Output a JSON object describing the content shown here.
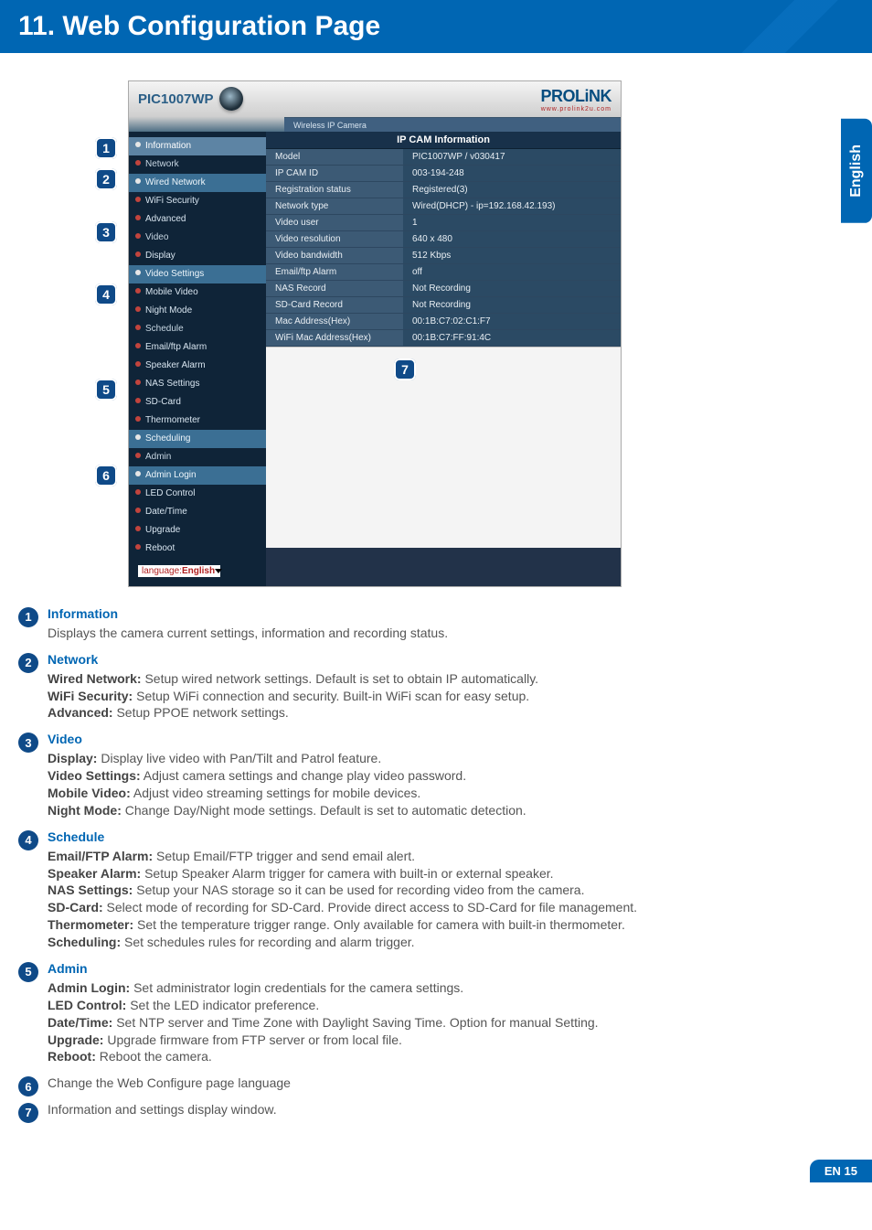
{
  "page": {
    "heading": "11. Web Configuration Page",
    "english_tab": "English",
    "footer_label": "EN 15"
  },
  "bubbles": [
    "1",
    "2",
    "3",
    "4",
    "5",
    "6",
    "7"
  ],
  "screenshot": {
    "model_label": "PIC1007WP",
    "tabbar_text": "Wireless IP Camera",
    "brand_main": "PROLiNK",
    "brand_sub": "www.prolink2u.com",
    "side_items": [
      {
        "label": "Information",
        "cls": "selected"
      },
      {
        "label": "Network",
        "cls": "section"
      },
      {
        "label": "Wired Network",
        "cls": "highlight"
      },
      {
        "label": "WiFi Security",
        "cls": ""
      },
      {
        "label": "Advanced",
        "cls": ""
      },
      {
        "label": "Video",
        "cls": "section"
      },
      {
        "label": "Display",
        "cls": ""
      },
      {
        "label": "Video Settings",
        "cls": "highlight"
      },
      {
        "label": "Mobile Video",
        "cls": ""
      },
      {
        "label": "Night Mode",
        "cls": ""
      },
      {
        "label": "Schedule",
        "cls": "section"
      },
      {
        "label": "Email/ftp Alarm",
        "cls": ""
      },
      {
        "label": "Speaker Alarm",
        "cls": ""
      },
      {
        "label": "NAS Settings",
        "cls": ""
      },
      {
        "label": "SD-Card",
        "cls": ""
      },
      {
        "label": "Thermometer",
        "cls": ""
      },
      {
        "label": "Scheduling",
        "cls": "highlight"
      },
      {
        "label": "Admin",
        "cls": "section"
      },
      {
        "label": "Admin Login",
        "cls": "highlight"
      },
      {
        "label": "LED Control",
        "cls": ""
      },
      {
        "label": "Date/Time",
        "cls": ""
      },
      {
        "label": "Upgrade",
        "cls": ""
      },
      {
        "label": "Reboot",
        "cls": ""
      }
    ],
    "lang_prefix": "language:",
    "lang_value": "English",
    "main_header": "IP CAM Information",
    "rows": [
      {
        "k": "Model",
        "v": "PIC1007WP / v030417"
      },
      {
        "k": "IP CAM ID",
        "v": "003-194-248"
      },
      {
        "k": "Registration status",
        "v": "Registered(3)"
      },
      {
        "k": "Network type",
        "v": "Wired(DHCP) - ip=192.168.42.193)"
      },
      {
        "k": "Video user",
        "v": "1"
      },
      {
        "k": "Video resolution",
        "v": "640 x 480"
      },
      {
        "k": "Video bandwidth",
        "v": "512 Kbps"
      },
      {
        "k": "Email/ftp Alarm",
        "v": "off"
      },
      {
        "k": "NAS Record",
        "v": "Not Recording"
      },
      {
        "k": "SD-Card Record",
        "v": "Not Recording"
      },
      {
        "k": "Mac Address(Hex)",
        "v": "00:1B:C7:02:C1:F7"
      },
      {
        "k": "WiFi Mac Address(Hex)",
        "v": "00:1B:C7:FF:91:4C"
      }
    ]
  },
  "definitions": [
    {
      "num": "1",
      "title": "Information",
      "lines": [
        {
          "bold": "",
          "text": "Displays the camera current settings, information and recording status."
        }
      ]
    },
    {
      "num": "2",
      "title": "Network",
      "lines": [
        {
          "bold": "Wired Network:",
          "text": " Setup wired network settings. Default is set to obtain IP automatically."
        },
        {
          "bold": "WiFi Security:",
          "text": " Setup WiFi connection and security. Built-in WiFi scan for easy setup."
        },
        {
          "bold": "Advanced:",
          "text": " Setup PPOE network settings."
        }
      ]
    },
    {
      "num": "3",
      "title": "Video",
      "lines": [
        {
          "bold": "Display:",
          "text": " Display live video with Pan/Tilt and Patrol feature."
        },
        {
          "bold": "Video Settings:",
          "text": " Adjust camera settings and change play video password."
        },
        {
          "bold": "Mobile Video:",
          "text": " Adjust video streaming settings for mobile devices."
        },
        {
          "bold": "Night Mode:",
          "text": " Change Day/Night mode settings. Default is set to automatic detection."
        }
      ]
    },
    {
      "num": "4",
      "title": "Schedule",
      "lines": [
        {
          "bold": "Email/FTP Alarm:",
          "text": " Setup Email/FTP trigger and send email alert."
        },
        {
          "bold": "Speaker Alarm:",
          "text": " Setup Speaker Alarm trigger for camera with built-in or external speaker."
        },
        {
          "bold": "NAS Settings:",
          "text": " Setup your NAS storage so it can be used for recording video from the camera."
        },
        {
          "bold": "SD-Card:",
          "text": " Select mode of recording for SD-Card. Provide direct access to SD-Card for file management."
        },
        {
          "bold": "Thermometer:",
          "text": " Set the temperature trigger range. Only available for camera with built-in thermometer."
        },
        {
          "bold": "Scheduling:",
          "text": " Set schedules rules for recording and alarm trigger."
        }
      ]
    },
    {
      "num": "5",
      "title": "Admin",
      "lines": [
        {
          "bold": "Admin Login:",
          "text": " Set administrator login credentials for the camera settings."
        },
        {
          "bold": "LED Control:",
          "text": " Set the LED indicator preference."
        },
        {
          "bold": "Date/Time:",
          "text": " Set NTP server and Time Zone with Daylight Saving Time. Option for manual Setting."
        },
        {
          "bold": "Upgrade:",
          "text": " Upgrade firmware from FTP server or from local file."
        },
        {
          "bold": "Reboot:",
          "text": " Reboot the camera."
        }
      ]
    },
    {
      "num": "6",
      "title": "",
      "lines": [
        {
          "bold": "",
          "text": "Change the Web Configure page language"
        }
      ]
    },
    {
      "num": "7",
      "title": "",
      "lines": [
        {
          "bold": "",
          "text": "Information and settings display window."
        }
      ]
    }
  ]
}
